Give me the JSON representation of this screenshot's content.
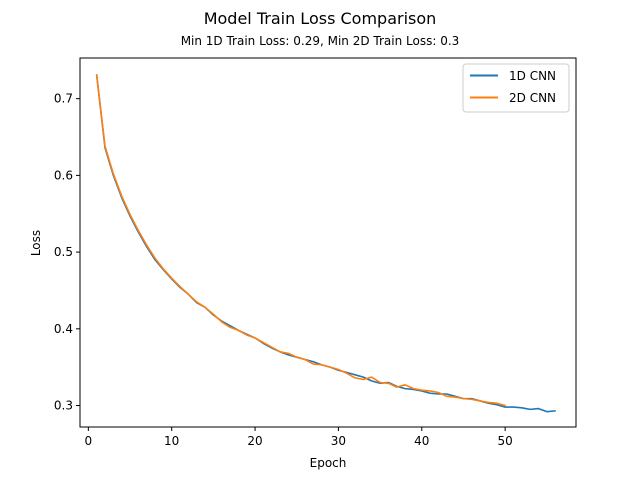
{
  "chart_data": {
    "type": "line",
    "title": "Model Train Loss Comparison",
    "subtitle": "Min 1D Train Loss: 0.29, Min 2D Train Loss: 0.3",
    "xlabel": "Epoch",
    "ylabel": "Loss",
    "xlim": [
      -1,
      58.5
    ],
    "ylim": [
      0.272,
      0.753
    ],
    "xticks": [
      0,
      10,
      20,
      30,
      40,
      50
    ],
    "yticks": [
      0.3,
      0.4,
      0.5,
      0.6,
      0.7
    ],
    "ytick_labels": [
      "0.3",
      "0.4",
      "0.5",
      "0.6",
      "0.7"
    ],
    "grid": false,
    "legend": "top-right",
    "series": [
      {
        "name": "1D CNN",
        "color": "#1f77b4",
        "x": [
          1,
          2,
          3,
          4,
          5,
          6,
          7,
          8,
          9,
          10,
          11,
          12,
          13,
          14,
          15,
          16,
          17,
          18,
          19,
          20,
          21,
          22,
          23,
          24,
          25,
          26,
          27,
          28,
          29,
          30,
          31,
          32,
          33,
          34,
          35,
          36,
          37,
          38,
          39,
          40,
          41,
          42,
          43,
          44,
          45,
          46,
          47,
          48,
          49,
          50,
          51,
          52,
          53,
          54,
          55,
          56
        ],
        "values": [
          0.731,
          0.636,
          0.6,
          0.571,
          0.547,
          0.526,
          0.507,
          0.49,
          0.477,
          0.465,
          0.454,
          0.445,
          0.434,
          0.428,
          0.418,
          0.41,
          0.404,
          0.398,
          0.393,
          0.388,
          0.381,
          0.375,
          0.37,
          0.366,
          0.363,
          0.36,
          0.357,
          0.353,
          0.35,
          0.346,
          0.343,
          0.34,
          0.337,
          0.332,
          0.329,
          0.33,
          0.325,
          0.322,
          0.321,
          0.319,
          0.316,
          0.315,
          0.315,
          0.312,
          0.309,
          0.309,
          0.306,
          0.303,
          0.301,
          0.298,
          0.298,
          0.297,
          0.295,
          0.296,
          0.292,
          0.293
        ]
      },
      {
        "name": "2D CNN",
        "color": "#ff7f0e",
        "x": [
          1,
          2,
          3,
          4,
          5,
          6,
          7,
          8,
          9,
          10,
          11,
          12,
          13,
          14,
          15,
          16,
          17,
          18,
          19,
          20,
          21,
          22,
          23,
          24,
          25,
          26,
          27,
          28,
          29,
          30,
          31,
          32,
          33,
          34,
          35,
          36,
          37,
          38,
          39,
          40,
          41,
          42,
          43,
          44,
          45,
          46,
          47,
          48,
          49,
          50
        ],
        "values": [
          0.731,
          0.638,
          0.602,
          0.573,
          0.549,
          0.528,
          0.509,
          0.492,
          0.478,
          0.466,
          0.455,
          0.445,
          0.435,
          0.428,
          0.419,
          0.409,
          0.402,
          0.398,
          0.392,
          0.388,
          0.382,
          0.376,
          0.37,
          0.368,
          0.363,
          0.36,
          0.354,
          0.353,
          0.35,
          0.347,
          0.342,
          0.336,
          0.334,
          0.337,
          0.33,
          0.329,
          0.324,
          0.327,
          0.322,
          0.32,
          0.319,
          0.317,
          0.312,
          0.311,
          0.309,
          0.308,
          0.306,
          0.304,
          0.303,
          0.3
        ]
      }
    ]
  }
}
